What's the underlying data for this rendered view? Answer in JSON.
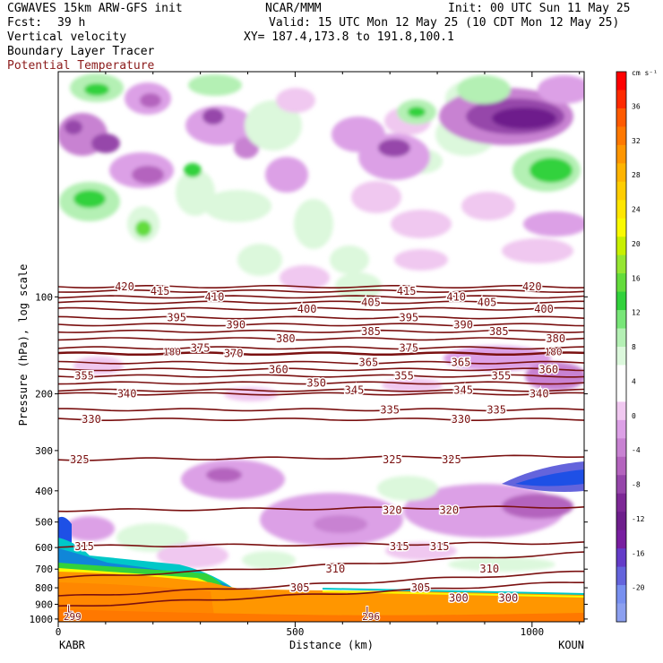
{
  "header": {
    "model": "CGWAVES 15km ARW-GFS init",
    "center": "NCAR/MMM",
    "init": "Init: 00 UTC Sun 11 May 25",
    "fcst_label": "Fcst:",
    "fcst_value": "39 h",
    "valid": "Valid: 15 UTC Mon 12 May 25 (10 CDT Mon 12 May 25)",
    "xy": "XY= 187.4,173.8 to 191.8,100.1",
    "fields": [
      {
        "text": "Vertical velocity",
        "color": "#000000"
      },
      {
        "text": "Boundary Layer Tracer",
        "color": "#000000"
      },
      {
        "text": "Potential Temperature",
        "color": "#8b1a1a"
      }
    ]
  },
  "chart_data": {
    "type": "heatmap",
    "description_fields": [
      "Vertical velocity",
      "Boundary Layer Tracer",
      "Potential Temperature"
    ],
    "xlabel": "Distance (km)",
    "ylabel": "Pressure (hPa), log scale",
    "x_range": [
      0,
      1110
    ],
    "x_ticks": [
      0,
      500,
      1000
    ],
    "x_tick_labels": [
      "0",
      "500",
      "1000"
    ],
    "x_endpoints": {
      "left": "KABR",
      "right": "KOUN"
    },
    "y_scale": "log",
    "y_range": [
      1020,
      20
    ],
    "y_ticks": [
      100,
      200,
      300,
      400,
      500,
      600,
      700,
      800,
      900,
      1000
    ],
    "y_tick_labels": [
      "100",
      "200",
      "300",
      "400",
      "500",
      "600",
      "700",
      "800",
      "900",
      "1000"
    ],
    "colorbar": {
      "units": "cm s⁻¹",
      "labels": [
        "36",
        "32",
        "28",
        "24",
        "20",
        "16",
        "12",
        "8",
        "4",
        "0",
        "-4",
        "-8",
        "-12",
        "-16",
        "-20"
      ],
      "label_values": [
        36,
        32,
        28,
        24,
        20,
        16,
        12,
        8,
        4,
        0,
        -4,
        -8,
        -12,
        -16,
        -20
      ],
      "colors": [
        "#ff0000",
        "#ff2a00",
        "#ff5a00",
        "#ff7800",
        "#ff9600",
        "#ffb400",
        "#ffcd00",
        "#ffe600",
        "#fafa00",
        "#c8f000",
        "#96e632",
        "#64dc3c",
        "#32d23c",
        "#78e678",
        "#b4f0b4",
        "#dcf8dc",
        "#ffffff",
        "#ffffff",
        "#f0c8f0",
        "#dca0e6",
        "#c882d2",
        "#b464be",
        "#9646aa",
        "#7d2896",
        "#6e1e8c",
        "#781ea0",
        "#643cc8",
        "#6464dc",
        "#7890f0",
        "#8ca0f0"
      ]
    },
    "theta_contours": [
      {
        "value": 420,
        "p": 93,
        "labels": [
          {
            "x": 140,
            "text": "420"
          },
          {
            "x": 1000,
            "text": "420"
          }
        ]
      },
      {
        "value": 415,
        "p": 96,
        "labels": [
          {
            "x": 215,
            "text": "415"
          },
          {
            "x": 735,
            "text": "415"
          }
        ]
      },
      {
        "value": 410,
        "p": 100,
        "labels": [
          {
            "x": 330,
            "text": "410"
          },
          {
            "x": 840,
            "text": "410"
          }
        ]
      },
      {
        "value": 405,
        "p": 104,
        "labels": [
          {
            "x": 660,
            "text": "405"
          },
          {
            "x": 905,
            "text": "405"
          }
        ]
      },
      {
        "value": 400,
        "p": 109,
        "labels": [
          {
            "x": 525,
            "text": "400"
          },
          {
            "x": 1025,
            "text": "400"
          }
        ]
      },
      {
        "value": 395,
        "p": 116,
        "labels": [
          {
            "x": 250,
            "text": "395"
          },
          {
            "x": 740,
            "text": "395"
          }
        ]
      },
      {
        "value": 390,
        "p": 122,
        "labels": [
          {
            "x": 375,
            "text": "390"
          },
          {
            "x": 855,
            "text": "390"
          }
        ]
      },
      {
        "value": 385,
        "p": 128,
        "labels": [
          {
            "x": 660,
            "text": "385"
          },
          {
            "x": 930,
            "text": "385"
          }
        ]
      },
      {
        "value": 380,
        "p": 135,
        "labels": [
          {
            "x": 480,
            "text": "380"
          },
          {
            "x": 1050,
            "text": "380"
          }
        ]
      },
      {
        "value": 375,
        "p": 144,
        "labels": [
          {
            "x": 300,
            "text": "375"
          },
          {
            "x": 740,
            "text": "375"
          }
        ]
      },
      {
        "value": 370,
        "p": 150,
        "labels": [
          {
            "x": 370,
            "text": "370"
          }
        ]
      },
      {
        "value": 365,
        "p": 160,
        "labels": [
          {
            "x": 655,
            "text": "365"
          },
          {
            "x": 850,
            "text": "365"
          }
        ]
      },
      {
        "value": 360,
        "p": 168,
        "labels": [
          {
            "x": 465,
            "text": "360"
          },
          {
            "x": 1035,
            "text": "360"
          }
        ]
      },
      {
        "value": 355,
        "p": 176,
        "labels": [
          {
            "x": 55,
            "text": "355"
          },
          {
            "x": 730,
            "text": "355"
          },
          {
            "x": 935,
            "text": "355"
          }
        ]
      },
      {
        "value": 350,
        "p": 185,
        "labels": [
          {
            "x": 545,
            "text": "350"
          }
        ]
      },
      {
        "value": 345,
        "p": 195,
        "labels": [
          {
            "x": 625,
            "text": "345"
          },
          {
            "x": 855,
            "text": "345"
          }
        ]
      },
      {
        "value": 340,
        "p": 200,
        "labels": [
          {
            "x": 145,
            "text": "340"
          },
          {
            "x": 1015,
            "text": "340"
          }
        ]
      },
      {
        "value": 335,
        "p": 224,
        "labels": [
          {
            "x": 700,
            "text": "335"
          },
          {
            "x": 925,
            "text": "335"
          }
        ]
      },
      {
        "value": 330,
        "p": 240,
        "labels": [
          {
            "x": 70,
            "text": "330"
          },
          {
            "x": 850,
            "text": "330"
          }
        ]
      },
      {
        "value": 325,
        "p": 320,
        "labels": [
          {
            "x": 45,
            "text": "325"
          },
          {
            "x": 705,
            "text": "325"
          },
          {
            "x": 830,
            "text": "325"
          }
        ]
      },
      {
        "value": 320,
        "p": 460,
        "labels": [
          {
            "x": 705,
            "text": "320"
          },
          {
            "x": 825,
            "text": "320"
          }
        ]
      },
      {
        "value": 315,
        "p": 595,
        "labels": [
          {
            "x": 55,
            "text": "315"
          },
          {
            "x": 720,
            "text": "315"
          },
          {
            "x": 805,
            "text": "315"
          }
        ]
      },
      {
        "value": 310,
        "p": 700,
        "labels": [
          {
            "x": 585,
            "text": "310"
          },
          {
            "x": 910,
            "text": "310"
          }
        ]
      },
      {
        "value": 305,
        "p": 800,
        "labels": [
          {
            "x": 510,
            "text": "305"
          },
          {
            "x": 765,
            "text": "305"
          }
        ]
      },
      {
        "value": 300,
        "p": 860,
        "labels": [
          {
            "x": 845,
            "text": "300"
          },
          {
            "x": 950,
            "text": "300"
          }
        ]
      }
    ],
    "extra_labels": [
      {
        "x": 240,
        "p": 148,
        "text": "180"
      },
      {
        "x": 1045,
        "p": 148,
        "text": "180"
      },
      {
        "x": 25,
        "p": 930,
        "text": "L"
      },
      {
        "x": 655,
        "p": 940,
        "text": "L"
      },
      {
        "x": 30,
        "p": 1018,
        "text": "299"
      },
      {
        "x": 660,
        "p": 1018,
        "text": "296"
      }
    ]
  }
}
